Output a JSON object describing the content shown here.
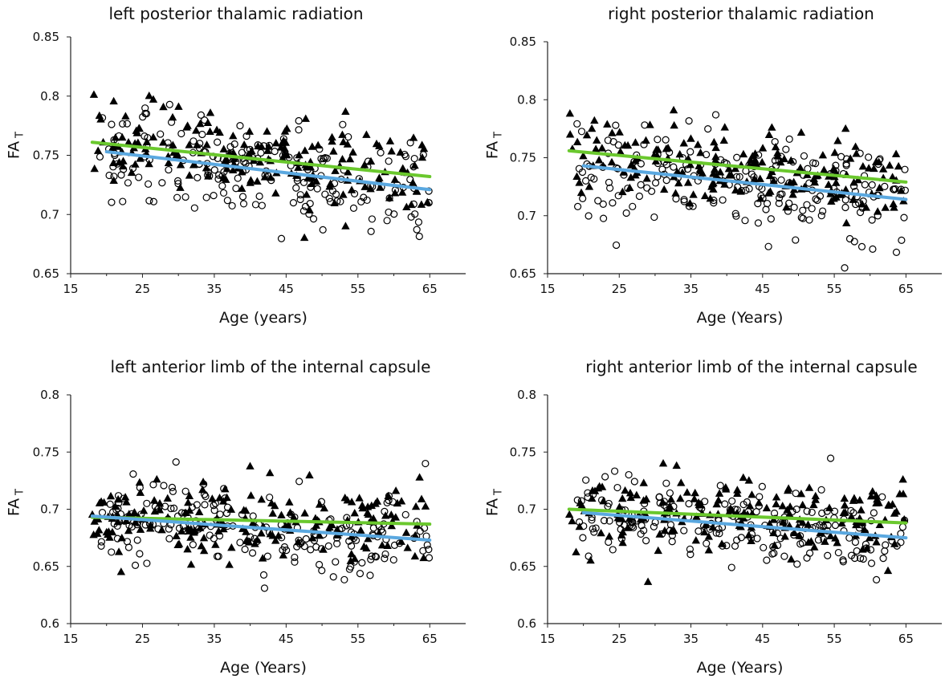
{
  "chart_data": [
    {
      "type": "scatter",
      "title": "left posterior thalamic radiation",
      "xlabel": "Age (years)",
      "ylabel": "FA",
      "ylabel_subscript": "T",
      "xlim": [
        15,
        70
      ],
      "ylim": [
        0.65,
        0.85
      ],
      "x_ticks": [
        "15",
        "25",
        "35",
        "45",
        "55",
        "65"
      ],
      "y_ticks": [
        "0.65",
        "0.7",
        "0.75",
        "0.8",
        "0.85"
      ],
      "grid": false,
      "series": [
        {
          "marker": "triangle-filled",
          "color": "#000000",
          "x_range": [
            18,
            65
          ],
          "y_center": 0.748,
          "y_spread": 0.022,
          "n": 190,
          "seed": 11
        },
        {
          "marker": "circle-open",
          "color": "#000000",
          "x_range": [
            19,
            65
          ],
          "y_center": 0.737,
          "y_spread": 0.026,
          "n": 200,
          "seed": 12
        }
      ],
      "fit_lines": [
        {
          "color": "#6ac82d",
          "x": [
            18,
            65
          ],
          "y": [
            0.761,
            0.732
          ]
        },
        {
          "color": "#5aa8e0",
          "x": [
            20,
            65
          ],
          "y": [
            0.753,
            0.721
          ]
        }
      ]
    },
    {
      "type": "scatter",
      "title": "right posterior thalamic radiation",
      "xlabel": "Age (Years)",
      "ylabel": "FA",
      "ylabel_subscript": "T",
      "xlim": [
        15,
        70
      ],
      "ylim": [
        0.65,
        0.85
      ],
      "x_ticks": [
        "15",
        "25",
        "35",
        "45",
        "55",
        "65"
      ],
      "y_ticks": [
        "0.65",
        "0.7",
        "0.75",
        "0.8",
        "0.85"
      ],
      "grid": false,
      "series": [
        {
          "marker": "triangle-filled",
          "color": "#000000",
          "x_range": [
            18,
            65
          ],
          "y_center": 0.742,
          "y_spread": 0.022,
          "n": 190,
          "seed": 21
        },
        {
          "marker": "circle-open",
          "color": "#000000",
          "x_range": [
            19,
            65
          ],
          "y_center": 0.728,
          "y_spread": 0.028,
          "n": 200,
          "seed": 22
        }
      ],
      "fit_lines": [
        {
          "color": "#6ac82d",
          "x": [
            18,
            65
          ],
          "y": [
            0.756,
            0.729
          ]
        },
        {
          "color": "#5aa8e0",
          "x": [
            20,
            65
          ],
          "y": [
            0.743,
            0.714
          ]
        }
      ]
    },
    {
      "type": "scatter",
      "title": "left anterior limb of the internal capsule",
      "xlabel": "Age (Years)",
      "ylabel": "FA",
      "ylabel_subscript": "T",
      "xlim": [
        15,
        70
      ],
      "ylim": [
        0.6,
        0.8
      ],
      "x_ticks": [
        "15",
        "25",
        "35",
        "45",
        "55",
        "65"
      ],
      "y_ticks": [
        "0.6",
        "0.65",
        "0.7",
        "0.75",
        "0.8"
      ],
      "grid": false,
      "series": [
        {
          "marker": "triangle-filled",
          "color": "#000000",
          "x_range": [
            18,
            65
          ],
          "y_center": 0.69,
          "y_spread": 0.022,
          "n": 190,
          "seed": 31
        },
        {
          "marker": "circle-open",
          "color": "#000000",
          "x_range": [
            19,
            65
          ],
          "y_center": 0.685,
          "y_spread": 0.024,
          "n": 200,
          "seed": 32
        }
      ],
      "fit_lines": [
        {
          "color": "#6ac82d",
          "x": [
            18,
            65
          ],
          "y": [
            0.693,
            0.687
          ]
        },
        {
          "color": "#5aa8e0",
          "x": [
            18,
            65
          ],
          "y": [
            0.694,
            0.673
          ]
        }
      ]
    },
    {
      "type": "scatter",
      "title": "right anterior limb of the internal capsule",
      "xlabel": "Age (Years)",
      "ylabel": "FA",
      "ylabel_subscript": "T",
      "xlim": [
        15,
        70
      ],
      "ylim": [
        0.6,
        0.8
      ],
      "x_ticks": [
        "15",
        "25",
        "35",
        "45",
        "55",
        "65"
      ],
      "y_ticks": [
        "0.6",
        "0.65",
        "0.7",
        "0.75",
        "0.8"
      ],
      "grid": false,
      "series": [
        {
          "marker": "triangle-filled",
          "color": "#000000",
          "x_range": [
            18,
            65
          ],
          "y_center": 0.693,
          "y_spread": 0.022,
          "n": 190,
          "seed": 41
        },
        {
          "marker": "circle-open",
          "color": "#000000",
          "x_range": [
            19,
            65
          ],
          "y_center": 0.685,
          "y_spread": 0.022,
          "n": 200,
          "seed": 42
        }
      ],
      "fit_lines": [
        {
          "color": "#6ac82d",
          "x": [
            18,
            65
          ],
          "y": [
            0.7,
            0.688
          ]
        },
        {
          "color": "#5aa8e0",
          "x": [
            20,
            65
          ],
          "y": [
            0.697,
            0.675
          ]
        }
      ]
    }
  ]
}
